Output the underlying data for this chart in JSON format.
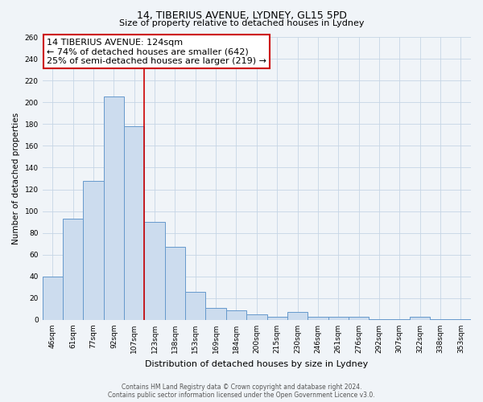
{
  "title": "14, TIBERIUS AVENUE, LYDNEY, GL15 5PD",
  "subtitle": "Size of property relative to detached houses in Lydney",
  "xlabel": "Distribution of detached houses by size in Lydney",
  "ylabel": "Number of detached properties",
  "bar_labels": [
    "46sqm",
    "61sqm",
    "77sqm",
    "92sqm",
    "107sqm",
    "123sqm",
    "138sqm",
    "153sqm",
    "169sqm",
    "184sqm",
    "200sqm",
    "215sqm",
    "230sqm",
    "246sqm",
    "261sqm",
    "276sqm",
    "292sqm",
    "307sqm",
    "322sqm",
    "338sqm",
    "353sqm"
  ],
  "bar_values": [
    40,
    93,
    128,
    205,
    178,
    90,
    67,
    26,
    11,
    9,
    5,
    3,
    7,
    3,
    3,
    3,
    1,
    1,
    3,
    1,
    1
  ],
  "bar_color": "#ccdcee",
  "bar_edge_color": "#6699cc",
  "vline_color": "#cc0000",
  "vline_x_index": 5,
  "annotation_title": "14 TIBERIUS AVENUE: 124sqm",
  "annotation_line1": "← 74% of detached houses are smaller (642)",
  "annotation_line2": "25% of semi-detached houses are larger (219) →",
  "annotation_box_edgecolor": "#cc0000",
  "annotation_box_facecolor": "#ffffff",
  "ylim": [
    0,
    260
  ],
  "yticks": [
    0,
    20,
    40,
    60,
    80,
    100,
    120,
    140,
    160,
    180,
    200,
    220,
    240,
    260
  ],
  "footer_line1": "Contains HM Land Registry data © Crown copyright and database right 2024.",
  "footer_line2": "Contains public sector information licensed under the Open Government Licence v3.0.",
  "background_color": "#f0f4f8",
  "grid_color": "#c5d5e5",
  "title_fontsize": 9,
  "subtitle_fontsize": 8,
  "xlabel_fontsize": 8,
  "ylabel_fontsize": 7.5,
  "tick_fontsize": 6.5,
  "annotation_fontsize": 8,
  "footer_fontsize": 5.5
}
